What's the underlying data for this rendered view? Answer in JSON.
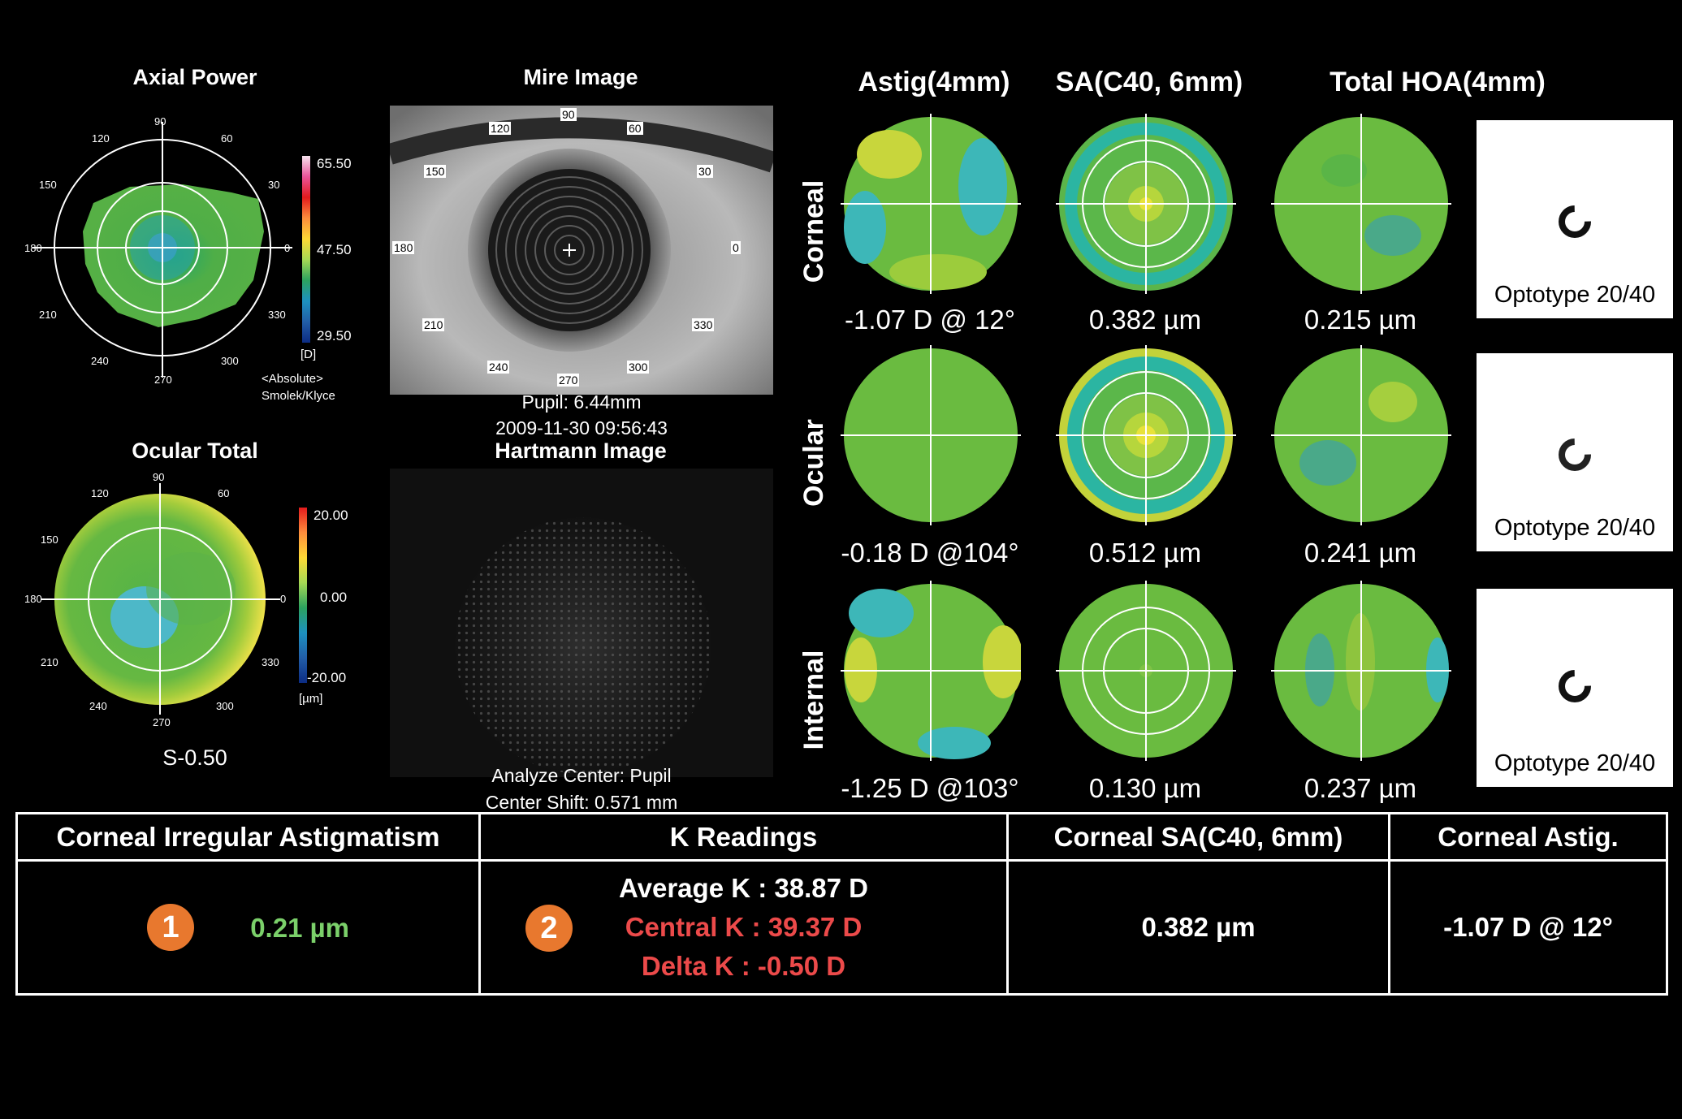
{
  "axial": {
    "title": "Axial Power",
    "max": "65.50",
    "mid": "47.50",
    "min": "29.50",
    "unit": "[D]",
    "mode": "<Absolute>",
    "scale": "Smolek/Klyce"
  },
  "ocular_total": {
    "title": "Ocular Total",
    "max": "20.00",
    "mid": "0.00",
    "min": "-20.00",
    "unit": "[µm]",
    "value": "S-0.50"
  },
  "angles": {
    "a90": "90",
    "a120": "120",
    "a60": "60",
    "a150": "150",
    "a30": "30",
    "a180": "180",
    "a0": "0",
    "a210": "210",
    "a330": "330",
    "a240": "240",
    "a300": "300",
    "a270": "270"
  },
  "mire": {
    "title": "Mire Image",
    "pupil": "Pupil: 6.44mm",
    "timestamp": "2009-11-30 09:56:43"
  },
  "hartmann": {
    "title": "Hartmann Image",
    "analyze": "Analyze Center: Pupil",
    "shift": "Center Shift:  0.571 mm"
  },
  "grid": {
    "columns": [
      "Astig(4mm)",
      "SA(C40, 6mm)",
      "Total HOA(4mm)"
    ],
    "rows": [
      {
        "label": "Corneal",
        "values": [
          "-1.07 D @ 12°",
          "0.382 µm",
          "0.215 µm"
        ],
        "optotype": "Optotype 20/40"
      },
      {
        "label": "Ocular",
        "values": [
          "-0.18 D @104°",
          "0.512 µm",
          "0.241 µm"
        ],
        "optotype": "Optotype 20/40"
      },
      {
        "label": "Internal",
        "values": [
          "-1.25 D @103°",
          "0.130 µm",
          "0.237 µm"
        ],
        "optotype": "Optotype 20/40"
      }
    ]
  },
  "summary": {
    "headers": [
      "Corneal Irregular Astigmatism",
      "K Readings",
      "Corneal SA(C40, 6mm)",
      "Corneal Astig."
    ],
    "irregular": "0.21 µm",
    "avg_k": "Average K : 38.87 D",
    "central_k": "Central K : 39.37 D",
    "delta_k": "Delta K : -0.50 D",
    "corneal_sa": "0.382 µm",
    "corneal_astig": "-1.07 D @ 12°",
    "badge1": "1",
    "badge2": "2"
  },
  "colors": {
    "accent_orange": "#e8782e",
    "green_text": "#7bd06a",
    "red_text": "#ec4a4a"
  }
}
